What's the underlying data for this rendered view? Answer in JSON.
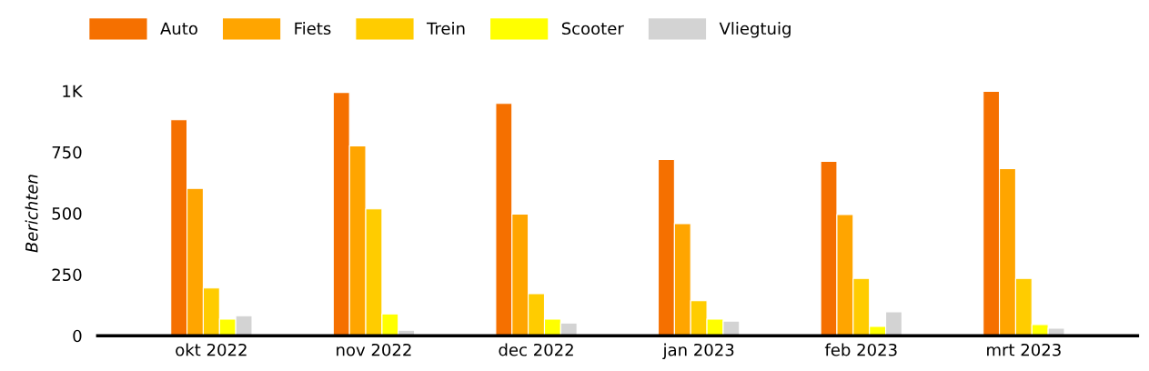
{
  "chart_data": {
    "type": "bar",
    "ylabel": "Berichten",
    "categories": [
      "okt 2022",
      "nov 2022",
      "dec 2022",
      "jan 2023",
      "feb 2023",
      "mrt 2023"
    ],
    "series": [
      {
        "name": "Auto",
        "color": "#f57000",
        "values": [
          882,
          994,
          949,
          720,
          712,
          998
        ]
      },
      {
        "name": "Fiets",
        "color": "#ffa500",
        "values": [
          602,
          775,
          497,
          458,
          495,
          683
        ]
      },
      {
        "name": "Trein",
        "color": "#ffcc00",
        "values": [
          195,
          518,
          172,
          143,
          234,
          234
        ]
      },
      {
        "name": "Scooter",
        "color": "#ffff00",
        "values": [
          68,
          89,
          68,
          68,
          38,
          46
        ]
      },
      {
        "name": "Vliegtuig",
        "color": "#d3d3d3",
        "values": [
          82,
          22,
          52,
          60,
          98,
          31
        ]
      }
    ],
    "ylim": [
      0,
      1000
    ],
    "yticks": [
      0,
      250,
      500,
      750,
      {
        "value": 1000,
        "label": "1K"
      }
    ],
    "grid": false,
    "legend": "top left"
  }
}
